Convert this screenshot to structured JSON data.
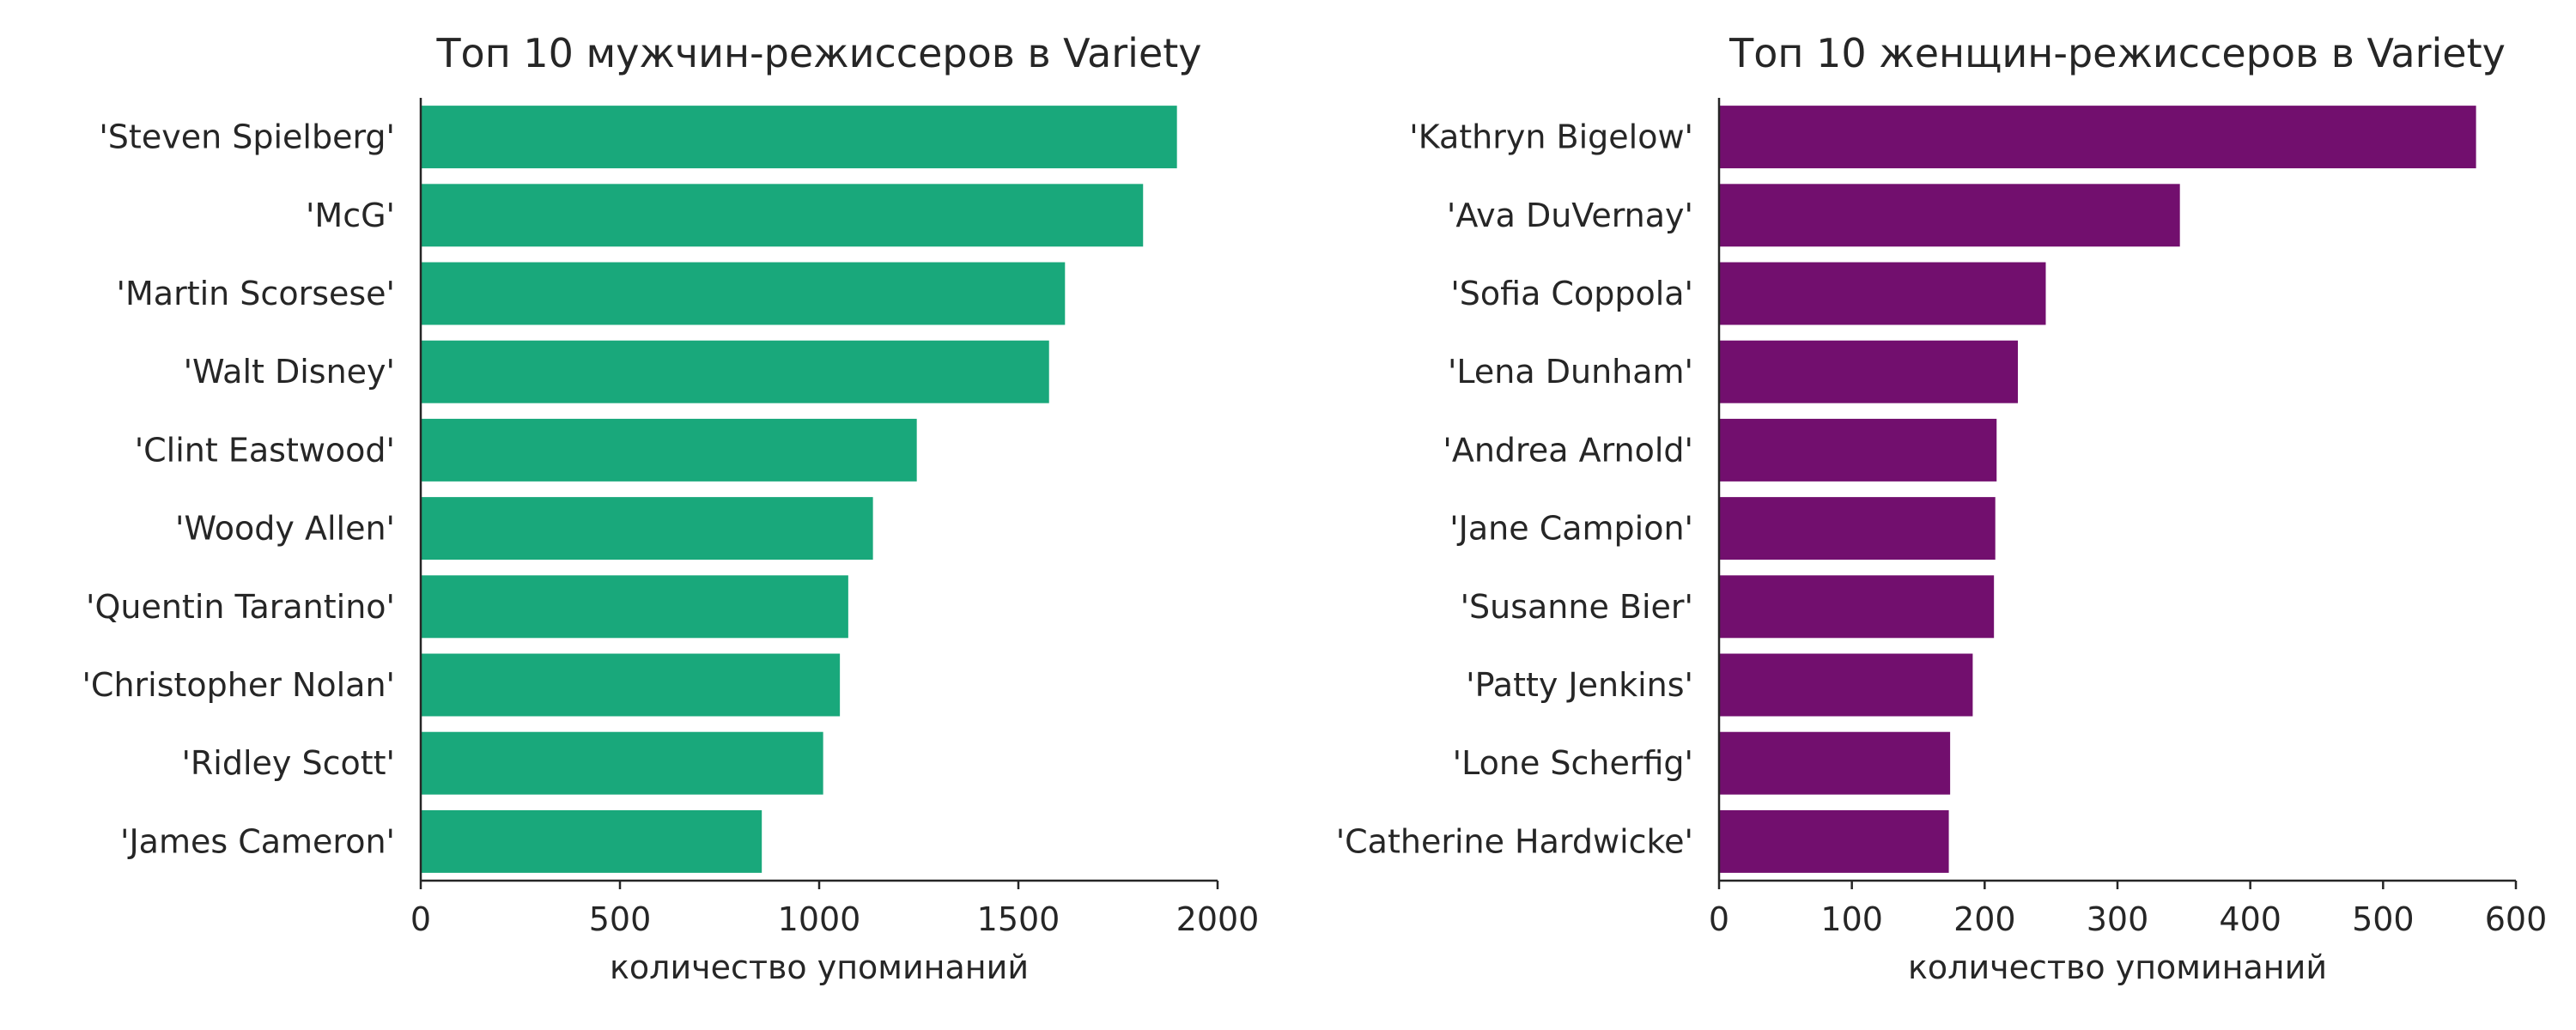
{
  "chart_data": [
    {
      "type": "bar",
      "orientation": "horizontal",
      "title": "Топ 10 мужчин-режиссеров в Variety",
      "xlabel": "количество упоминаний",
      "ylabel": "",
      "xlim": [
        0,
        2000
      ],
      "xticks": [
        0,
        500,
        1000,
        1500,
        2000
      ],
      "color": "#19a87b",
      "grid": false,
      "categories": [
        "'Steven Spielberg'",
        "'McG'",
        "'Martin Scorsese'",
        "'Walt Disney'",
        "'Clint Eastwood'",
        "'Woody Allen'",
        "'Quentin Tarantino'",
        "'Christopher Nolan'",
        "'Ridley Scott'",
        "'James Cameron'"
      ],
      "values": [
        1898,
        1813,
        1617,
        1577,
        1245,
        1135,
        1073,
        1052,
        1010,
        856
      ]
    },
    {
      "type": "bar",
      "orientation": "horizontal",
      "title": "Топ 10 женщин-режиссеров в Variety",
      "xlabel": "количество упоминаний",
      "ylabel": "",
      "xlim": [
        0,
        600
      ],
      "xticks": [
        0,
        100,
        200,
        300,
        400,
        500,
        600
      ],
      "color": "#720f6e",
      "grid": false,
      "categories": [
        "'Kathryn Bigelow'",
        "'Ava DuVernay'",
        "'Sofia Coppola'",
        "'Lena Dunham'",
        "'Andrea Arnold'",
        "'Jane Campion'",
        "'Susanne Bier'",
        "'Patty Jenkins'",
        "'Lone Scherfig'",
        "'Catherine Hardwicke'"
      ],
      "values": [
        570,
        347,
        246,
        225,
        209,
        208,
        207,
        191,
        174,
        173
      ]
    }
  ]
}
